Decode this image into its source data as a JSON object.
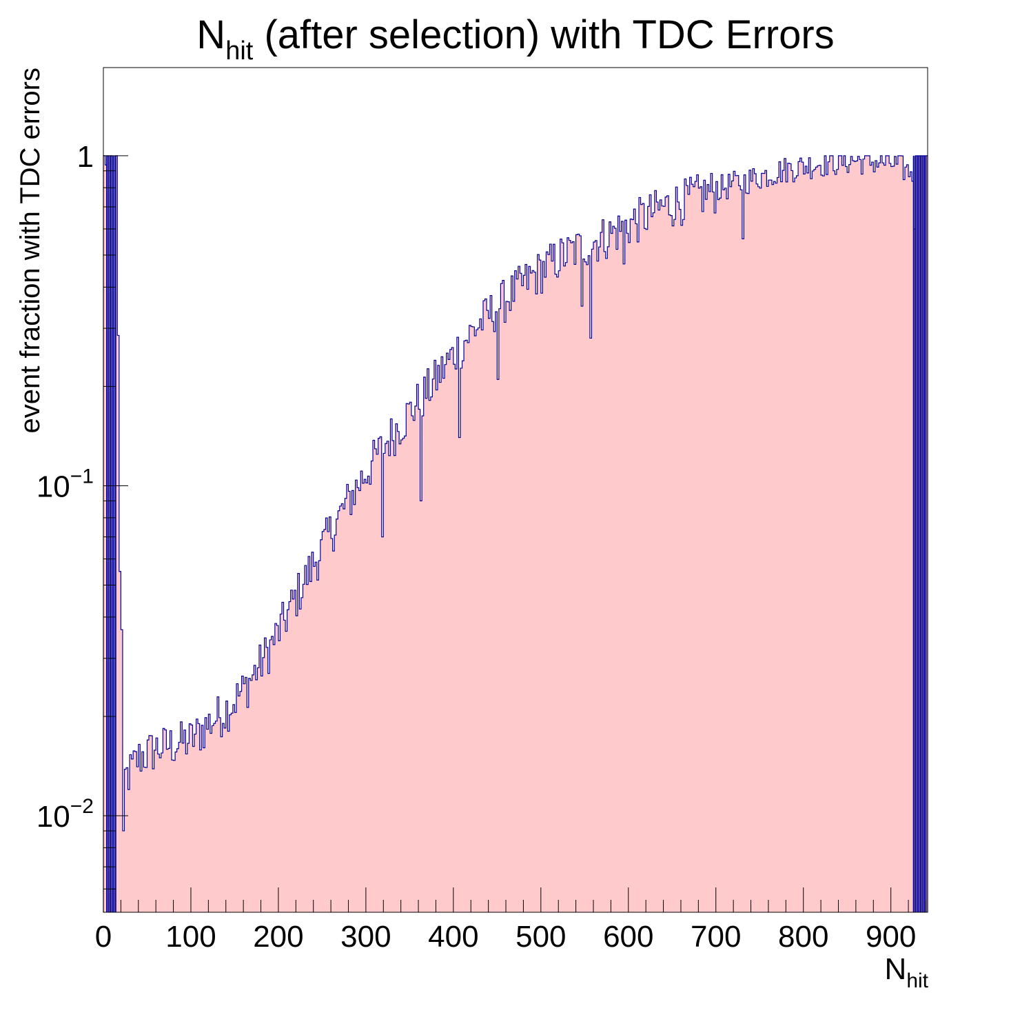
{
  "chart_data": {
    "type": "bar",
    "title": {
      "main": "N",
      "sub": "hit",
      "rest": " (after selection) with TDC Errors"
    },
    "xlabel": {
      "main": "N",
      "sub": "hit"
    },
    "ylabel": "event fraction with TDC errors",
    "x_scale": "linear",
    "y_scale": "log",
    "xlim": [
      0,
      942
    ],
    "ylim": [
      0.0051,
      1.85
    ],
    "bin_width": 2,
    "x_ticks": [
      {
        "value": 0,
        "label": "0"
      },
      {
        "value": 100,
        "label": "100"
      },
      {
        "value": 200,
        "label": "200"
      },
      {
        "value": 300,
        "label": "300"
      },
      {
        "value": 400,
        "label": "400"
      },
      {
        "value": 500,
        "label": "500"
      },
      {
        "value": 600,
        "label": "600"
      },
      {
        "value": 700,
        "label": "700"
      },
      {
        "value": 800,
        "label": "800"
      },
      {
        "value": 900,
        "label": "900"
      }
    ],
    "y_ticks": [
      {
        "value": 0.01,
        "base": "10",
        "exp": "−2"
      },
      {
        "value": 0.1,
        "base": "10",
        "exp": "−1"
      },
      {
        "value": 1,
        "base": "1",
        "exp": ""
      }
    ],
    "grid": false,
    "legend": "none",
    "colors": {
      "fill": "#fecacb",
      "line": "#000099",
      "frame": "#000000"
    },
    "series": [
      {
        "curve_points": [
          [
            0,
            1
          ],
          [
            8,
            1
          ],
          [
            10,
            1
          ],
          [
            12,
            1
          ],
          [
            14,
            0.7
          ],
          [
            16,
            0.5
          ],
          [
            18,
            0.15
          ],
          [
            20,
            0.05
          ],
          [
            22,
            0.02
          ],
          [
            24,
            0.013
          ],
          [
            30,
            0.0135
          ],
          [
            40,
            0.015
          ],
          [
            60,
            0.016
          ],
          [
            80,
            0.0165
          ],
          [
            100,
            0.017
          ],
          [
            120,
            0.019
          ],
          [
            140,
            0.021
          ],
          [
            160,
            0.024
          ],
          [
            180,
            0.029
          ],
          [
            200,
            0.036
          ],
          [
            220,
            0.046
          ],
          [
            240,
            0.058
          ],
          [
            260,
            0.073
          ],
          [
            280,
            0.09
          ],
          [
            300,
            0.11
          ],
          [
            320,
            0.132
          ],
          [
            340,
            0.155
          ],
          [
            360,
            0.18
          ],
          [
            380,
            0.21
          ],
          [
            400,
            0.25
          ],
          [
            420,
            0.29
          ],
          [
            440,
            0.33
          ],
          [
            460,
            0.37
          ],
          [
            480,
            0.41
          ],
          [
            500,
            0.45
          ],
          [
            520,
            0.49
          ],
          [
            540,
            0.52
          ],
          [
            560,
            0.55
          ],
          [
            580,
            0.58
          ],
          [
            600,
            0.62
          ],
          [
            620,
            0.66
          ],
          [
            640,
            0.7
          ],
          [
            660,
            0.73
          ],
          [
            680,
            0.76
          ],
          [
            700,
            0.79
          ],
          [
            720,
            0.82
          ],
          [
            740,
            0.85
          ],
          [
            760,
            0.88
          ],
          [
            780,
            0.91
          ],
          [
            800,
            0.93
          ],
          [
            820,
            0.95
          ],
          [
            840,
            0.96
          ],
          [
            860,
            0.97
          ],
          [
            880,
            0.96
          ],
          [
            900,
            0.95
          ],
          [
            920,
            0.9
          ],
          [
            942,
            0.9
          ]
        ],
        "spikes_full": [
          4,
          6,
          8,
          10,
          12,
          14,
          926,
          928,
          930,
          932,
          934,
          936,
          938,
          940
        ],
        "dips": [
          [
            6,
            0.007
          ],
          [
            10,
            0.006
          ],
          [
            12,
            0.006
          ],
          [
            18,
            0.055
          ],
          [
            22,
            0.009
          ],
          [
            318,
            0.07
          ],
          [
            362,
            0.09
          ],
          [
            406,
            0.14
          ],
          [
            450,
            0.21
          ],
          [
            556,
            0.28
          ],
          [
            594,
            0.47
          ],
          [
            546,
            0.35
          ],
          [
            730,
            0.56
          ],
          [
            926,
            0.6
          ]
        ],
        "noise_amplitude": 0.1
      }
    ]
  }
}
